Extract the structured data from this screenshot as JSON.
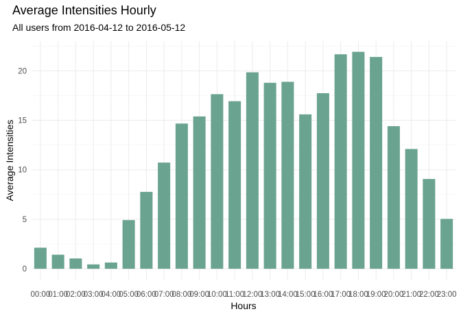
{
  "chart_data": {
    "type": "bar",
    "title": "Average Intensities Hourly",
    "subtitle": "All users from 2016-04-12 to 2016-05-12",
    "xlabel": "Hours",
    "ylabel": "Average Intensities",
    "categories": [
      "00:00",
      "01:00",
      "02:00",
      "03:00",
      "04:00",
      "05:00",
      "06:00",
      "07:00",
      "08:00",
      "09:00",
      "10:00",
      "11:00",
      "12:00",
      "13:00",
      "14:00",
      "15:00",
      "16:00",
      "17:00",
      "18:00",
      "19:00",
      "20:00",
      "21:00",
      "22:00",
      "23:00"
    ],
    "values": [
      2.13,
      1.42,
      1.04,
      0.44,
      0.63,
      4.92,
      7.77,
      10.73,
      14.67,
      15.39,
      17.64,
      16.93,
      19.85,
      18.79,
      18.89,
      15.6,
      17.74,
      21.67,
      21.92,
      21.4,
      14.41,
      12.1,
      9.07,
      5.04
    ],
    "yticks": [
      0,
      5,
      10,
      15,
      20
    ],
    "ylim": [
      -1.1,
      23.0
    ],
    "bar_color": "#6aa390",
    "grid": true,
    "legend": "none"
  }
}
